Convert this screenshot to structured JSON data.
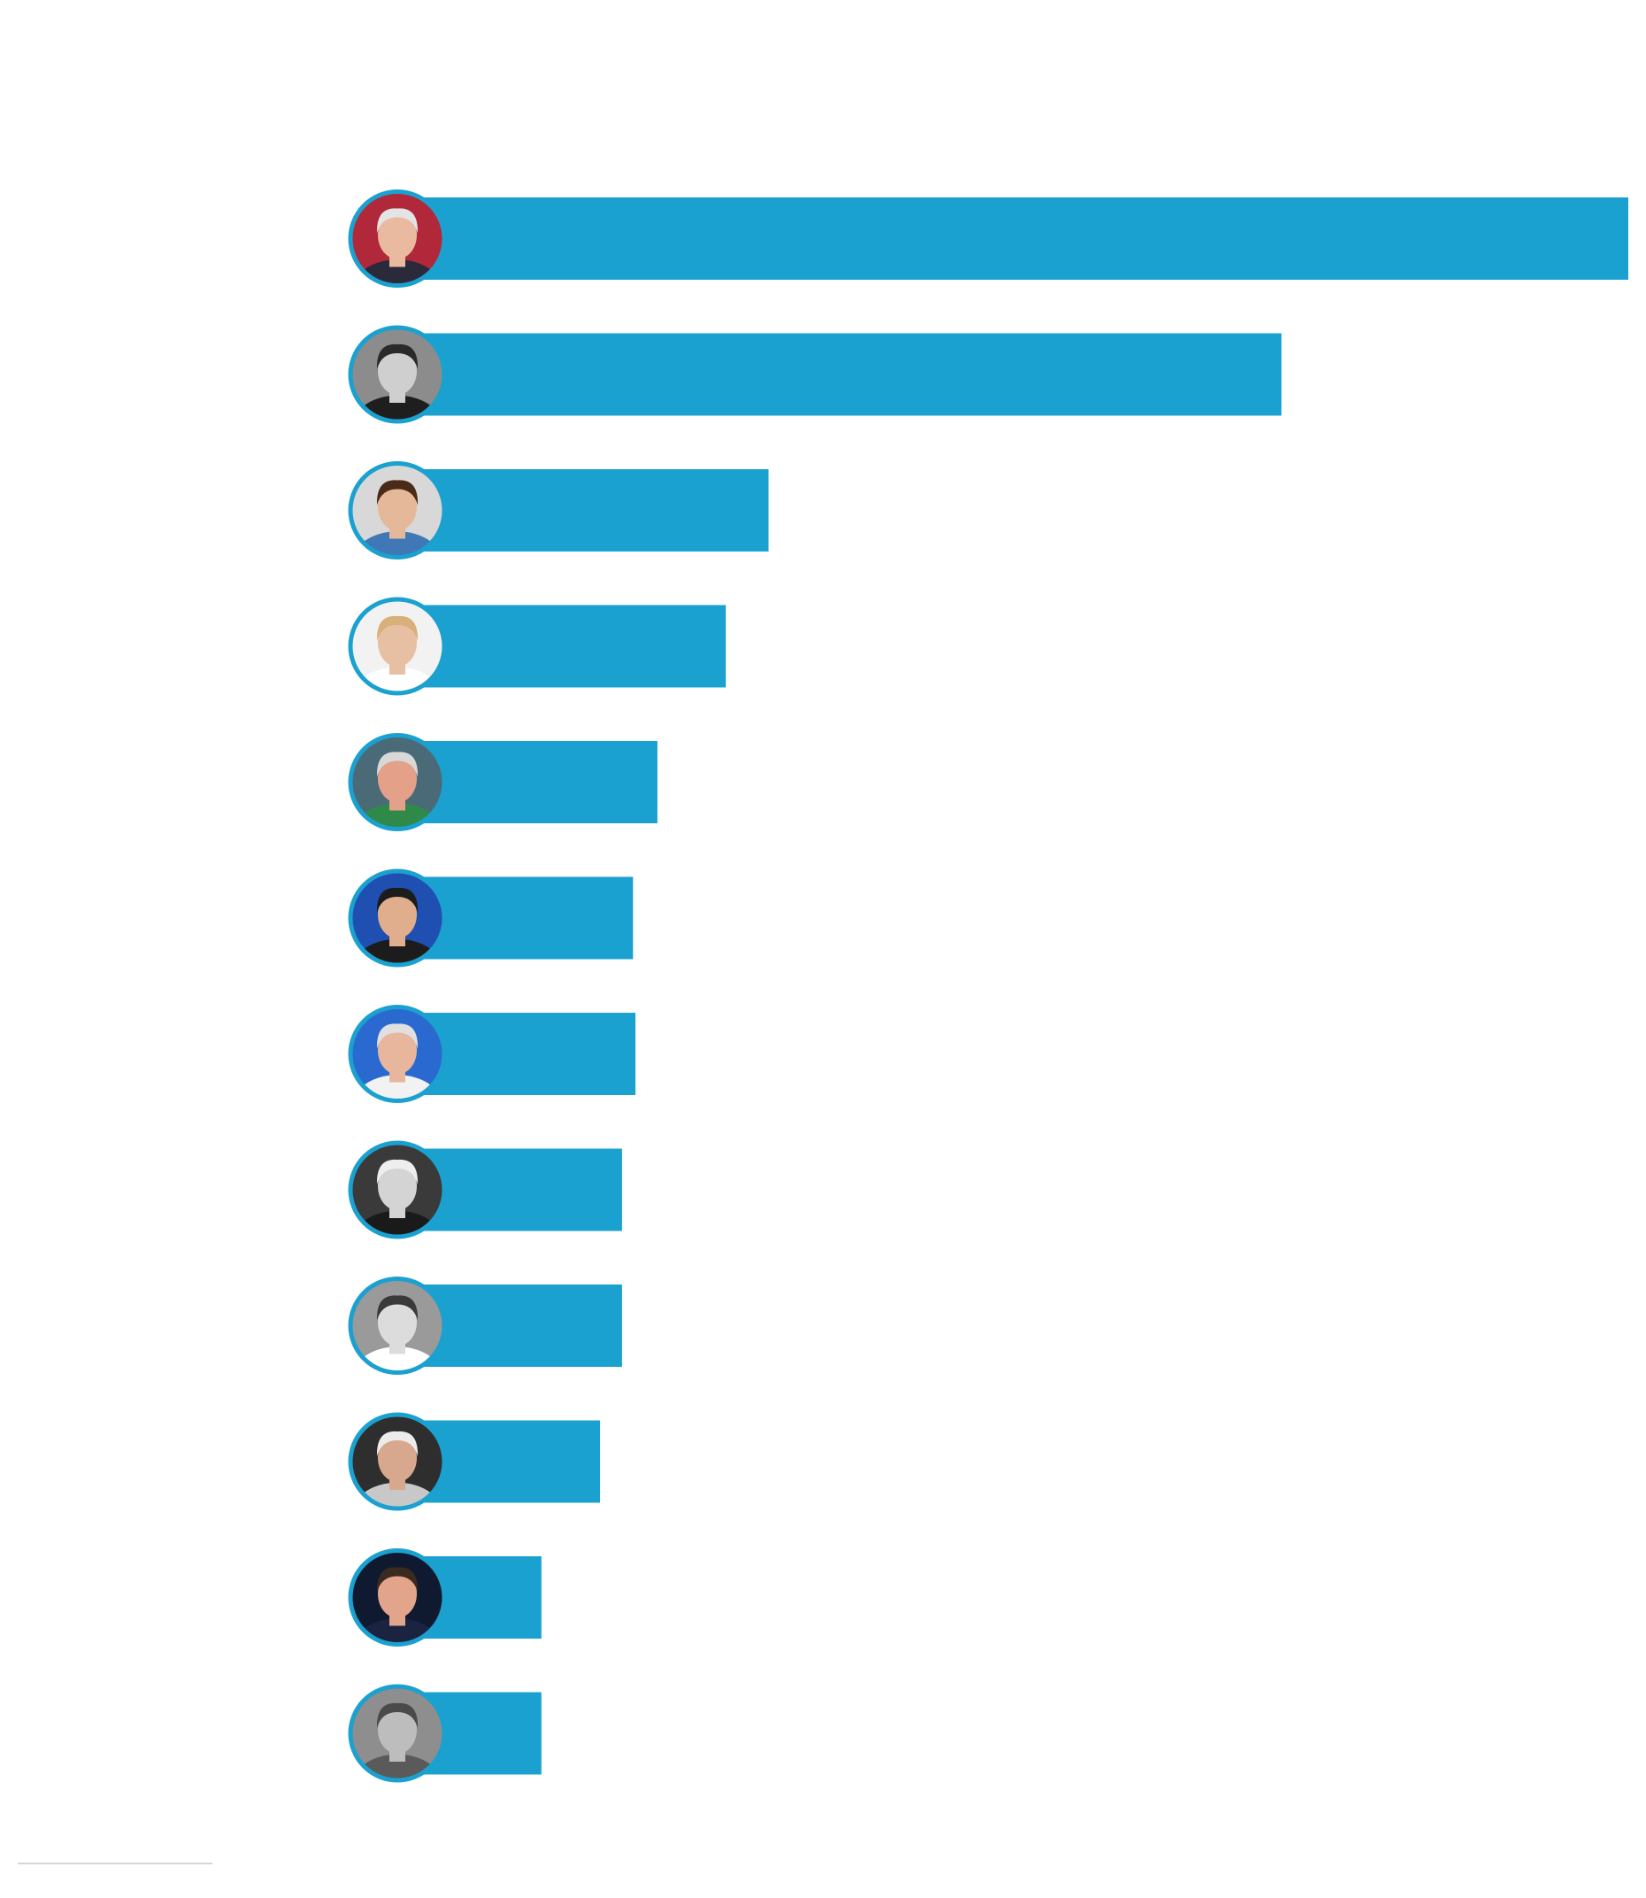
{
  "chart_data": {
    "type": "bar",
    "orientation": "horizontal",
    "title": "",
    "xlabel": "",
    "ylabel": "",
    "bar_color": "#1aa1cf",
    "ring_color": "#1aa1cf",
    "xlim": [
      0,
      100
    ],
    "grid": false,
    "legend": "none",
    "values": [
      100,
      71.6,
      29.6,
      26.1,
      20.5,
      18.5,
      18.7,
      17.6,
      17.6,
      15.8,
      11.0,
      11.0
    ],
    "avatars": [
      {
        "skin": "#e9b9a0",
        "hair": "#e4e4e4",
        "bg": "#b0283a",
        "shirt": "#2a2a3a"
      },
      {
        "skin": "#cfcfcf",
        "hair": "#2a2a2a",
        "bg": "#8c8c8c",
        "shirt": "#1e1e1e"
      },
      {
        "skin": "#e6b89a",
        "hair": "#4a2a18",
        "bg": "#d8d8d8",
        "shirt": "#3f78b5"
      },
      {
        "skin": "#e7c0a4",
        "hair": "#d9b07a",
        "bg": "#f2f2f2",
        "shirt": "#ffffff"
      },
      {
        "skin": "#e4a088",
        "hair": "#d8d8d8",
        "bg": "#4a6a78",
        "shirt": "#2f8a4a"
      },
      {
        "skin": "#e0ae8c",
        "hair": "#1c1c1c",
        "bg": "#1f4fb0",
        "shirt": "#1c1c1c"
      },
      {
        "skin": "#e8b69c",
        "hair": "#e0e0e0",
        "bg": "#2a6ad0",
        "shirt": "#f2f2f2"
      },
      {
        "skin": "#d4d4d4",
        "hair": "#eeeeee",
        "bg": "#3a3a3a",
        "shirt": "#1a1a1a"
      },
      {
        "skin": "#dcdcdc",
        "hair": "#3a3a3a",
        "bg": "#9a9a9a",
        "shirt": "#ffffff"
      },
      {
        "skin": "#d8a88e",
        "hair": "#ececec",
        "bg": "#2e2e2e",
        "shirt": "#c8c8c8"
      },
      {
        "skin": "#e2a48a",
        "hair": "#3a2a20",
        "bg": "#0f1a30",
        "shirt": "#1a2440"
      },
      {
        "skin": "#bdbdbd",
        "hair": "#4a4a4a",
        "bg": "#8e8e8e",
        "shirt": "#5a5a5a"
      }
    ]
  }
}
